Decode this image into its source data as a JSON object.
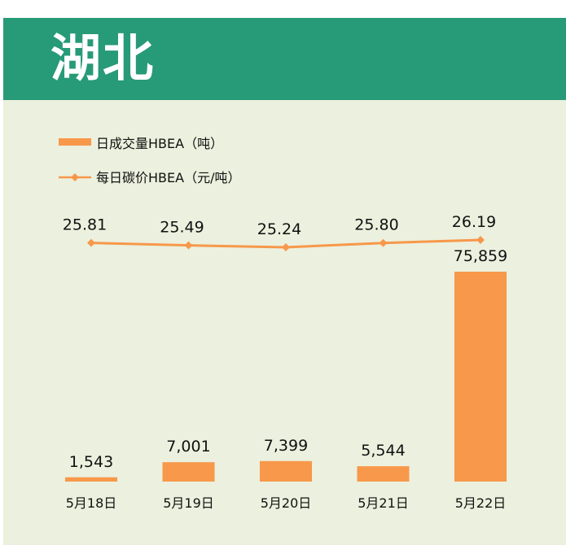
{
  "header": {
    "title": "湖北"
  },
  "colors": {
    "header_bg": "#279a78",
    "panel_bg": "#ecf0de",
    "series": "#f7984a"
  },
  "chart_data": {
    "type": "bar",
    "categories": [
      "5月18日",
      "5月19日",
      "5月20日",
      "5月21日",
      "5月22日"
    ],
    "series": [
      {
        "name": "日成交量HBEA（吨）",
        "type": "bar",
        "values": [
          1543,
          7001,
          7399,
          5544,
          75859
        ],
        "labels": [
          "1,543",
          "7,001",
          "7,399",
          "5,544",
          "75,859"
        ]
      },
      {
        "name": "每日碳价HBEA（元/吨）",
        "type": "line",
        "values": [
          25.81,
          25.49,
          25.24,
          25.8,
          26.19
        ],
        "labels": [
          "25.81",
          "25.49",
          "25.24",
          "25.80",
          "26.19"
        ]
      }
    ],
    "legend": "top-left",
    "grid": false
  }
}
